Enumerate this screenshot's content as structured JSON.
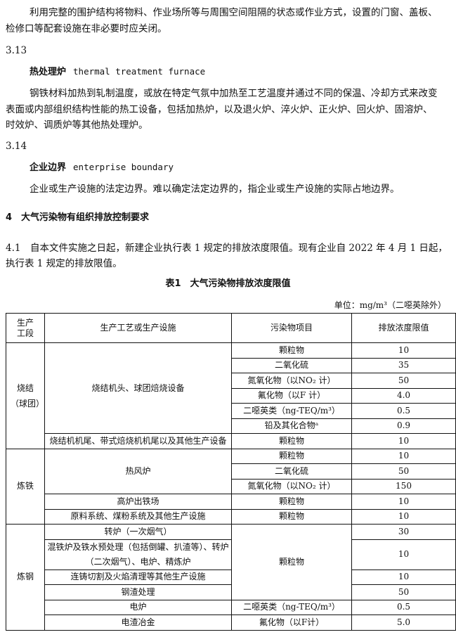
{
  "paragraphs": {
    "p1": [
      "利用完整的围护结构将物料、作业场所等与周围空间阻隔的状态或作业方式，设置的门窗、盖板、",
      "检修口等配套设施在非必要时应关闭。"
    ],
    "s313": {
      "num": "3.13",
      "term_cn": "热处理炉",
      "term_en": "thermal treatment furnace",
      "def": [
        "钢铁材料加热到轧制温度，或放在特定气氛中加热至工艺温度并通过不同的保温、冷却方式来改变",
        "表面或内部组织结构性能的热工设备，包括加热炉，以及退火炉、淬火炉、正火炉、回火炉、固溶炉、",
        "时效炉、调质炉等其他热处理炉。"
      ]
    },
    "s314": {
      "num": "3.14",
      "term_cn": "企业边界",
      "term_en": "enterprise boundary",
      "def": [
        "企业或生产设施的法定边界。难以确定法定边界的，指企业或生产设施的实际占地边界。"
      ]
    },
    "sec4": "4　大气污染物有组织排放控制要求",
    "s41": [
      "4.1　自本文件实施之日起，新建企业执行表 1 规定的排放浓度限值。现有企业自 2022 年 4 月 1 日起，",
      "执行表 1 规定的排放限值。"
    ]
  },
  "table": {
    "title": "表1　大气污染物排放浓度限值",
    "unit": "单位：mg/m³（二噁英除外）",
    "headers": [
      "生产工段",
      "生产工艺或生产设施",
      "污染物项目",
      "排放浓度限值"
    ],
    "sinter": {
      "stage": "烧结（球团）",
      "f1": "烧结机头、球团焙烧设备",
      "rows": [
        [
          "颗粒物",
          "10"
        ],
        [
          "二氧化硫",
          "35"
        ],
        [
          "氮氧化物（以NO₂ 计）",
          "50"
        ],
        [
          "氟化物（以F 计）",
          "4.0"
        ],
        [
          "二噁英类（ng-TEQ/m³）",
          "0.5"
        ],
        [
          "铅及其化合物ᵃ",
          "0.9"
        ]
      ],
      "f2": "烧结机机尾、带式焙烧机机尾以及其他生产设备",
      "f2p": "颗粒物",
      "f2v": "10"
    },
    "iron": {
      "stage": "炼铁",
      "f1": "热风炉",
      "rows": [
        [
          "颗粒物",
          "10"
        ],
        [
          "二氧化硫",
          "50"
        ],
        [
          "氮氧化物（以NO₂ 计）",
          "150"
        ]
      ],
      "f2": "高炉出铁场",
      "f2p": "颗粒物",
      "f2v": "10",
      "f3": "原料系统、煤粉系统及其他生产设施",
      "f3p": "颗粒物",
      "f3v": "10"
    },
    "steel": {
      "stage": "炼钢",
      "pm": "颗粒物",
      "rows": [
        [
          "转炉（一次烟气）",
          "30"
        ],
        [
          "混铁炉及铁水预处理（包括倒罐、扒渣等）、转炉（二次烟气）、电炉、精炼炉",
          "10"
        ],
        [
          "连铸切割及火焰清理等其他生产设施",
          "10"
        ],
        [
          "钢渣处理",
          "50"
        ]
      ],
      "ef": "电炉",
      "efp": "二噁英类（ng-TEQ/m³）",
      "efv": "0.5",
      "es": "电渣冶金",
      "esp": "氟化物（以F计）",
      "esv": "5.0"
    }
  }
}
